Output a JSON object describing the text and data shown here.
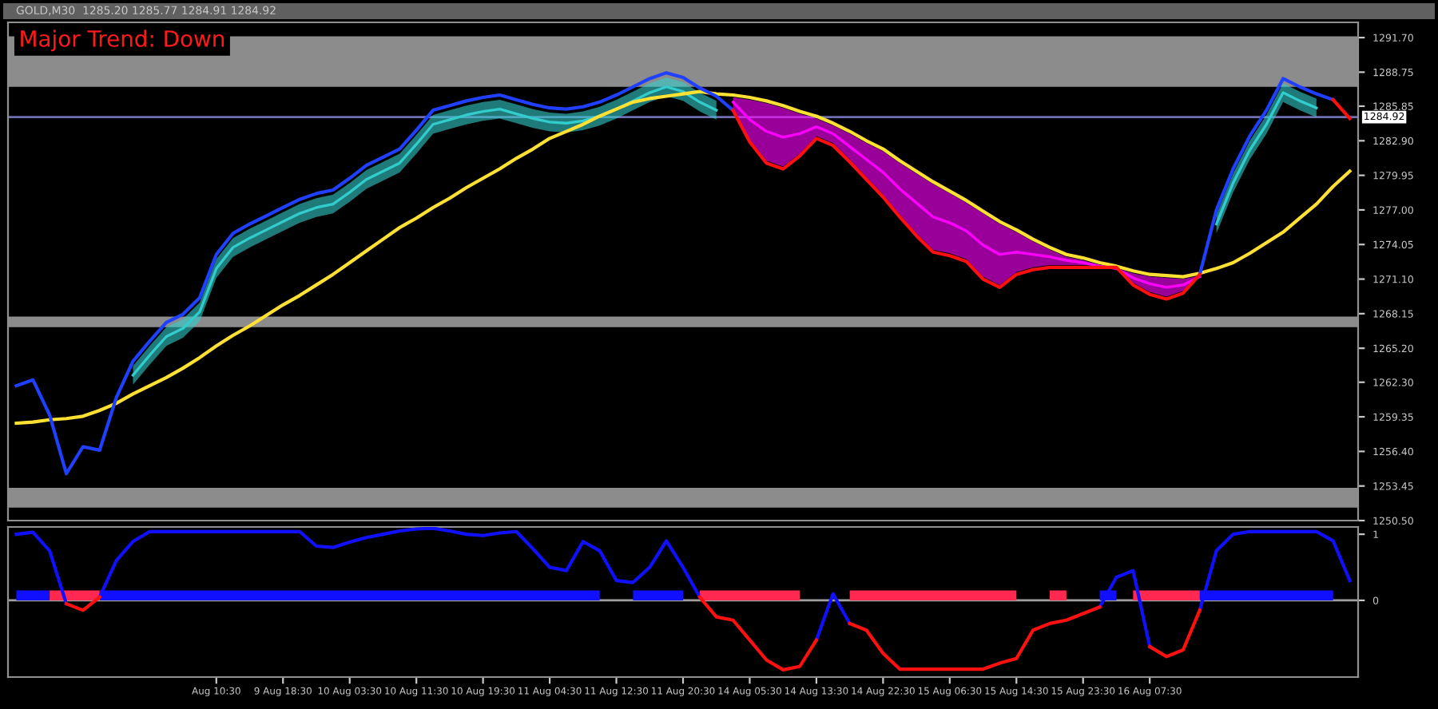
{
  "chart_data": [
    {
      "type": "line",
      "title": "GOLD,M30  1285.20 1285.77 1284.91 1284.92",
      "annotations": [
        "Major Trend: Down"
      ],
      "categories": [
        null,
        null,
        null,
        null,
        null,
        null,
        null,
        null,
        null,
        null,
        null,
        null,
        null,
        null,
        null,
        null,
        null,
        null,
        null,
        null,
        null,
        null,
        null,
        null,
        null,
        null,
        null,
        null,
        null,
        null,
        null,
        null,
        null,
        null,
        null,
        null,
        null,
        null,
        null,
        null,
        null,
        null,
        null,
        null,
        null,
        null,
        null,
        null,
        null,
        null,
        null,
        null,
        null,
        null,
        null,
        null,
        null,
        null,
        null,
        null,
        null,
        null,
        null,
        null,
        null,
        null,
        null,
        null,
        null,
        null,
        null,
        null,
        null,
        null,
        null,
        null,
        null,
        null,
        null,
        null,
        null
      ],
      "ylim": [
        1250.5,
        1293.0
      ],
      "yticks": [
        {
          "value": 1250.5,
          "label": "1250.50"
        },
        {
          "value": 1253.45,
          "label": "1253.45"
        },
        {
          "value": 1256.4,
          "label": "1256.40"
        },
        {
          "value": 1259.35,
          "label": "1259.35"
        },
        {
          "value": 1262.3,
          "label": "1262.30"
        },
        {
          "value": 1265.2,
          "label": "1265.20"
        },
        {
          "value": 1268.15,
          "label": "1268.15"
        },
        {
          "value": 1271.1,
          "label": "1271.10"
        },
        {
          "value": 1274.05,
          "label": "1274.05"
        },
        {
          "value": 1277.0,
          "label": "1277.00"
        },
        {
          "value": 1279.95,
          "label": "1279.95"
        },
        {
          "value": 1282.9,
          "label": "1282.90"
        },
        {
          "value": 1285.85,
          "label": "1285.85"
        },
        {
          "value": 1288.75,
          "label": "1288.75"
        },
        {
          "value": 1291.7,
          "label": "1291.70"
        }
      ],
      "tick_labels": "y",
      "ref_lines": [
        {
          "axis": "y",
          "value": 1284.92,
          "label": "1284.92",
          "color": "#7070b0"
        }
      ],
      "bands": [
        {
          "axis": "y",
          "from": 1287.5,
          "to": 1291.8,
          "color": "#8c8c8c"
        },
        {
          "axis": "y",
          "from": 1251.6,
          "to": 1253.3,
          "color": "#8c8c8c"
        },
        {
          "axis": "y",
          "from": 1267.0,
          "to": 1267.9,
          "color": "#8c8c8c"
        }
      ],
      "series": [
        {
          "color": "#33cccc",
          "values": [
            null,
            null,
            null,
            null,
            null,
            null,
            null,
            1262.9,
            1264.6,
            1266.2,
            1266.9,
            1268.3,
            1272.0,
            1273.8,
            1274.6,
            1275.3,
            1276.0,
            1276.7,
            1277.2,
            1277.5,
            1278.5,
            1279.6,
            1280.3,
            1281.0,
            1282.6,
            1284.3,
            1284.7,
            1285.1,
            1285.4,
            1285.6,
            1285.2,
            1284.8,
            1284.5,
            1284.4,
            1284.6,
            1285.0,
            1285.6,
            1286.3,
            1287.0,
            1287.5,
            1287.1,
            1286.2,
            1285.5,
            null,
            null,
            null,
            null,
            null,
            null,
            null,
            null,
            null,
            null,
            null,
            null,
            null,
            null,
            null,
            null,
            null,
            null,
            null,
            null,
            null,
            null,
            null,
            null,
            null,
            null,
            null,
            null,
            null,
            1275.8,
            1279.3,
            1282.1,
            1284.3,
            1287.0,
            1286.3,
            1285.7,
            null,
            null
          ],
          "upper": [
            null,
            null,
            null,
            null,
            null,
            null,
            null,
            1263.7,
            1265.4,
            1267.0,
            1267.7,
            1269.1,
            1272.8,
            1274.6,
            1275.4,
            1276.1,
            1276.8,
            1277.5,
            1278.0,
            1278.3,
            1279.3,
            1280.4,
            1281.1,
            1281.8,
            1283.4,
            1285.1,
            1285.5,
            1285.9,
            1286.2,
            1286.4,
            1286.0,
            1285.6,
            1285.3,
            1285.2,
            1285.4,
            1285.8,
            1286.4,
            1287.1,
            1287.8,
            1288.3,
            1287.9,
            1287.0,
            1286.3,
            null,
            null,
            null,
            null,
            null,
            null,
            null,
            null,
            null,
            null,
            null,
            null,
            null,
            null,
            null,
            null,
            null,
            null,
            null,
            null,
            null,
            null,
            null,
            null,
            null,
            null,
            null,
            null,
            null,
            1276.6,
            1280.1,
            1282.9,
            1285.1,
            1287.8,
            1287.1,
            1286.5,
            null,
            null
          ],
          "lower": [
            null,
            null,
            null,
            null,
            null,
            null,
            null,
            1262.1,
            1263.8,
            1265.4,
            1266.1,
            1267.5,
            1271.2,
            1273.0,
            1273.8,
            1274.5,
            1275.2,
            1275.9,
            1276.4,
            1276.7,
            1277.7,
            1278.8,
            1279.5,
            1280.2,
            1281.8,
            1283.5,
            1283.9,
            1284.3,
            1284.6,
            1284.8,
            1284.4,
            1284.0,
            1283.7,
            1283.6,
            1283.8,
            1284.2,
            1284.8,
            1285.5,
            1286.2,
            1286.7,
            1286.3,
            1285.4,
            1284.7,
            null,
            null,
            null,
            null,
            null,
            null,
            null,
            null,
            null,
            null,
            null,
            null,
            null,
            null,
            null,
            null,
            null,
            null,
            null,
            null,
            null,
            null,
            null,
            null,
            null,
            null,
            null,
            null,
            null,
            1275.0,
            1278.5,
            1281.3,
            1283.5,
            1286.2,
            1285.5,
            1284.9,
            null,
            null
          ]
        },
        {
          "color": "#ff00ff",
          "values": [
            null,
            null,
            null,
            null,
            null,
            null,
            null,
            null,
            null,
            null,
            null,
            null,
            null,
            null,
            null,
            null,
            null,
            null,
            null,
            null,
            null,
            null,
            null,
            null,
            null,
            null,
            null,
            null,
            null,
            null,
            null,
            null,
            null,
            null,
            null,
            null,
            null,
            null,
            null,
            null,
            null,
            null,
            null,
            1286.2,
            1284.7,
            1283.7,
            1283.2,
            1283.5,
            1284.1,
            1283.5,
            1282.4,
            1281.3,
            1280.2,
            1278.8,
            1277.6,
            1276.4,
            1275.9,
            1275.2,
            1274.0,
            1273.2,
            1273.4,
            1273.2,
            1273.0,
            1272.7,
            1272.5,
            1272.2,
            1272.0,
            1271.2,
            1270.7,
            1270.4,
            1270.6,
            1271.3,
            null,
            null,
            null,
            null,
            null,
            null,
            null,
            null,
            null
          ],
          "upper": [
            null,
            null,
            null,
            null,
            null,
            null,
            null,
            null,
            null,
            null,
            null,
            null,
            null,
            null,
            null,
            null,
            null,
            null,
            null,
            null,
            null,
            null,
            null,
            null,
            null,
            null,
            null,
            null,
            null,
            null,
            null,
            null,
            null,
            null,
            null,
            null,
            null,
            null,
            null,
            null,
            null,
            null,
            null,
            1286.6,
            1286.4,
            1286.1,
            1285.7,
            1285.2,
            1284.8,
            1284.2,
            1283.5,
            1282.7,
            1282.0,
            1281.0,
            1280.1,
            1279.2,
            1278.4,
            1277.6,
            1276.7,
            1275.8,
            1275.1,
            1274.3,
            1273.6,
            1273.0,
            1272.7,
            1272.3,
            1272.0,
            1271.6,
            1271.3,
            1271.2,
            1271.1,
            1271.4,
            null,
            null,
            null,
            null,
            null,
            null,
            null,
            null,
            null
          ],
          "lower": [
            null,
            null,
            null,
            null,
            null,
            null,
            null,
            null,
            null,
            null,
            null,
            null,
            null,
            null,
            null,
            null,
            null,
            null,
            null,
            null,
            null,
            null,
            null,
            null,
            null,
            null,
            null,
            null,
            null,
            null,
            null,
            null,
            null,
            null,
            null,
            null,
            null,
            null,
            null,
            null,
            null,
            null,
            null,
            1285.7,
            1283.0,
            1281.2,
            1280.7,
            1281.8,
            1283.3,
            1282.7,
            1281.3,
            1279.8,
            1278.3,
            1276.6,
            1275.0,
            1273.6,
            1273.3,
            1272.8,
            1271.3,
            1270.6,
            1271.7,
            1272.1,
            1272.3,
            1272.3,
            1272.3,
            1272.2,
            1271.9,
            1270.8,
            1270.0,
            1269.6,
            1270.1,
            1271.3,
            null,
            null,
            null,
            null,
            null,
            null,
            null,
            null,
            null
          ]
        },
        {
          "color": "#ffe033",
          "values": [
            1258.8,
            1258.9,
            1259.1,
            1259.2,
            1259.4,
            1259.9,
            1260.5,
            1261.3,
            1262.0,
            1262.7,
            1263.5,
            1264.4,
            1265.4,
            1266.3,
            1267.1,
            1268.0,
            1268.9,
            1269.7,
            1270.6,
            1271.5,
            1272.5,
            1273.5,
            1274.5,
            1275.5,
            1276.3,
            1277.2,
            1278.0,
            1278.9,
            1279.7,
            1280.5,
            1281.4,
            1282.2,
            1283.1,
            1283.7,
            1284.3,
            1285.0,
            1285.6,
            1286.2,
            1286.5,
            1286.7,
            1286.9,
            1287.1,
            1286.9,
            1286.8,
            1286.6,
            1286.3,
            1285.9,
            1285.4,
            1285.0,
            1284.4,
            1283.7,
            1282.9,
            1282.2,
            1281.2,
            1280.3,
            1279.4,
            1278.6,
            1277.8,
            1276.9,
            1276.0,
            1275.3,
            1274.5,
            1273.8,
            1273.2,
            1272.9,
            1272.5,
            1272.2,
            1271.8,
            1271.5,
            1271.4,
            1271.3,
            1271.6,
            1272.0,
            1272.5,
            1273.3,
            1274.2,
            1275.1,
            1276.3,
            1277.5,
            1279.0,
            1280.3
          ]
        },
        {
          "color": "#2040ff",
          "values": [
            1262.0,
            1262.5,
            1259.5,
            1254.5,
            1256.8,
            1256.5,
            1261.0,
            1264.1,
            1265.8,
            1267.4,
            1268.1,
            1269.5,
            1273.2,
            1275.0,
            1275.8,
            1276.5,
            1277.2,
            1277.9,
            1278.4,
            1278.7,
            1279.7,
            1280.8,
            1281.5,
            1282.2,
            1283.8,
            1285.5,
            1285.9,
            1286.3,
            1286.6,
            1286.8,
            1286.4,
            1286.0,
            1285.7,
            1285.6,
            1285.8,
            1286.2,
            1286.8,
            1287.5,
            1288.2,
            1288.7,
            1288.3,
            1287.4,
            1286.7,
            1285.5,
            null,
            null,
            null,
            null,
            null,
            null,
            null,
            null,
            null,
            null,
            null,
            null,
            null,
            null,
            null,
            null,
            null,
            null,
            null,
            null,
            null,
            null,
            null,
            null,
            null,
            null,
            null,
            1271.5,
            1277.0,
            1280.5,
            1283.3,
            1285.5,
            1288.2,
            1287.5,
            1286.9,
            1286.4,
            null
          ]
        },
        {
          "color": "#ff1010",
          "values": [
            null,
            null,
            null,
            null,
            null,
            null,
            null,
            null,
            null,
            null,
            null,
            null,
            null,
            null,
            null,
            null,
            null,
            null,
            null,
            null,
            null,
            null,
            null,
            null,
            null,
            null,
            null,
            null,
            null,
            null,
            null,
            null,
            null,
            null,
            null,
            null,
            null,
            null,
            null,
            null,
            null,
            null,
            null,
            1285.5,
            1282.8,
            1281.0,
            1280.5,
            1281.6,
            1283.1,
            1282.5,
            1281.1,
            1279.6,
            1278.1,
            1276.4,
            1274.8,
            1273.4,
            1273.1,
            1272.6,
            1271.1,
            1270.4,
            1271.5,
            1271.9,
            1272.1,
            1272.1,
            1272.1,
            1272.1,
            1272.1,
            1270.6,
            1269.8,
            1269.4,
            1269.9,
            1271.5,
            null,
            null,
            null,
            null,
            null,
            null,
            null,
            1286.4,
            1284.8
          ]
        }
      ]
    },
    {
      "type": "line",
      "categories": [
        null,
        null,
        null,
        null,
        null,
        null,
        null,
        null,
        null,
        null,
        null,
        null,
        "Aug 10:30",
        null,
        null,
        null,
        "9 Aug 18:30",
        null,
        null,
        null,
        "10 Aug 03:30",
        null,
        null,
        null,
        "10 Aug 11:30",
        null,
        null,
        null,
        "10 Aug 19:30",
        null,
        null,
        null,
        "11 Aug 04:30",
        null,
        null,
        null,
        "11 Aug 12:30",
        null,
        null,
        null,
        "11 Aug 20:30",
        null,
        null,
        null,
        "14 Aug 05:30",
        null,
        null,
        null,
        "14 Aug 13:30",
        null,
        null,
        null,
        "14 Aug 22:30",
        null,
        null,
        null,
        "15 Aug 06:30",
        null,
        null,
        null,
        "15 Aug 14:30",
        null,
        null,
        null,
        "15 Aug 23:30",
        null,
        null,
        null,
        "16 Aug 07:30",
        null,
        null,
        null,
        null,
        null,
        null,
        null,
        null,
        null,
        null,
        null,
        null
      ],
      "ylim": [
        -1.16,
        1.11
      ],
      "yticks": [
        0,
        1
      ],
      "ref_lines": [
        {
          "axis": "y",
          "value": 0,
          "color": "#a0a0a0"
        }
      ],
      "series": [
        {
          "type": "area",
          "color": "#1010ff",
          "values": [
            0.15,
            0.15,
            0.15,
            null,
            null,
            0.15,
            0.15,
            0.15,
            0.15,
            0.15,
            0.15,
            0.15,
            0.15,
            0.15,
            0.15,
            0.15,
            0.15,
            0.15,
            0.15,
            0.15,
            0.15,
            0.15,
            0.15,
            0.15,
            0.15,
            0.15,
            0.15,
            0.15,
            0.15,
            0.15,
            0.15,
            0.15,
            0.15,
            0.15,
            0.15,
            0.15,
            null,
            0.15,
            0.15,
            0.15,
            0.15,
            null,
            null,
            null,
            null,
            null,
            null,
            null,
            null,
            null,
            null,
            null,
            null,
            null,
            null,
            null,
            null,
            null,
            null,
            null,
            null,
            null,
            null,
            null,
            null,
            0.15,
            0.15,
            null,
            null,
            null,
            null,
            0.15,
            0.15,
            0.15,
            0.15,
            0.15,
            0.15,
            0.15,
            0.15,
            0.15,
            null
          ]
        },
        {
          "type": "area",
          "color": "#ff2850",
          "values": [
            null,
            null,
            0.15,
            0.15,
            0.15,
            0.15,
            null,
            null,
            null,
            null,
            null,
            null,
            null,
            null,
            null,
            null,
            null,
            null,
            null,
            null,
            null,
            null,
            null,
            null,
            null,
            null,
            null,
            null,
            null,
            null,
            null,
            null,
            null,
            null,
            null,
            null,
            null,
            null,
            null,
            null,
            null,
            0.15,
            0.15,
            0.15,
            0.15,
            0.15,
            0.15,
            0.15,
            null,
            null,
            0.15,
            0.15,
            0.15,
            0.15,
            0.15,
            0.15,
            0.15,
            0.15,
            0.15,
            0.15,
            0.15,
            null,
            0.15,
            0.15,
            null,
            null,
            null,
            0.15,
            0.15,
            0.15,
            0.15,
            0.15,
            null,
            null,
            null,
            null,
            null,
            null,
            null,
            null,
            null
          ]
        },
        {
          "color": "#1010ff",
          "values": [
            1.0,
            1.03,
            0.75,
            -0.05,
            null,
            0.05,
            0.6,
            0.89,
            1.04,
            1.04,
            1.04,
            1.04,
            1.04,
            1.04,
            1.04,
            1.04,
            1.04,
            1.04,
            0.82,
            0.8,
            0.88,
            0.95,
            1.0,
            1.05,
            1.08,
            1.09,
            1.05,
            1.0,
            0.98,
            1.02,
            1.04,
            0.78,
            0.5,
            0.45,
            0.89,
            0.75,
            0.3,
            0.27,
            0.5,
            0.9,
            0.5,
            0.05,
            null,
            null,
            null,
            null,
            null,
            null,
            -0.6,
            0.1,
            -0.35,
            null,
            null,
            null,
            null,
            null,
            null,
            null,
            null,
            null,
            null,
            null,
            null,
            null,
            null,
            -0.1,
            0.35,
            0.45,
            -0.7,
            null,
            null,
            -0.15,
            0.75,
            1.0,
            1.04,
            1.04,
            1.04,
            1.04,
            1.04,
            0.9,
            0.3
          ]
        },
        {
          "color": "#ff1010",
          "values": [
            null,
            null,
            null,
            -0.05,
            -0.15,
            0.05,
            null,
            null,
            null,
            null,
            null,
            null,
            null,
            null,
            null,
            null,
            null,
            null,
            null,
            null,
            null,
            null,
            null,
            null,
            null,
            null,
            null,
            null,
            null,
            null,
            null,
            null,
            null,
            null,
            null,
            null,
            null,
            null,
            null,
            null,
            null,
            0.05,
            -0.25,
            -0.3,
            -0.6,
            -0.9,
            -1.05,
            -1.0,
            -0.6,
            null,
            -0.35,
            -0.45,
            -0.8,
            -1.04,
            -1.04,
            -1.04,
            -1.04,
            -1.04,
            -1.04,
            -0.95,
            -0.88,
            -0.45,
            -0.35,
            -0.3,
            -0.2,
            -0.1,
            null,
            null,
            -0.7,
            -0.85,
            -0.75,
            -0.15,
            null,
            null,
            null,
            null,
            null,
            null,
            null,
            null,
            null
          ]
        }
      ]
    }
  ]
}
